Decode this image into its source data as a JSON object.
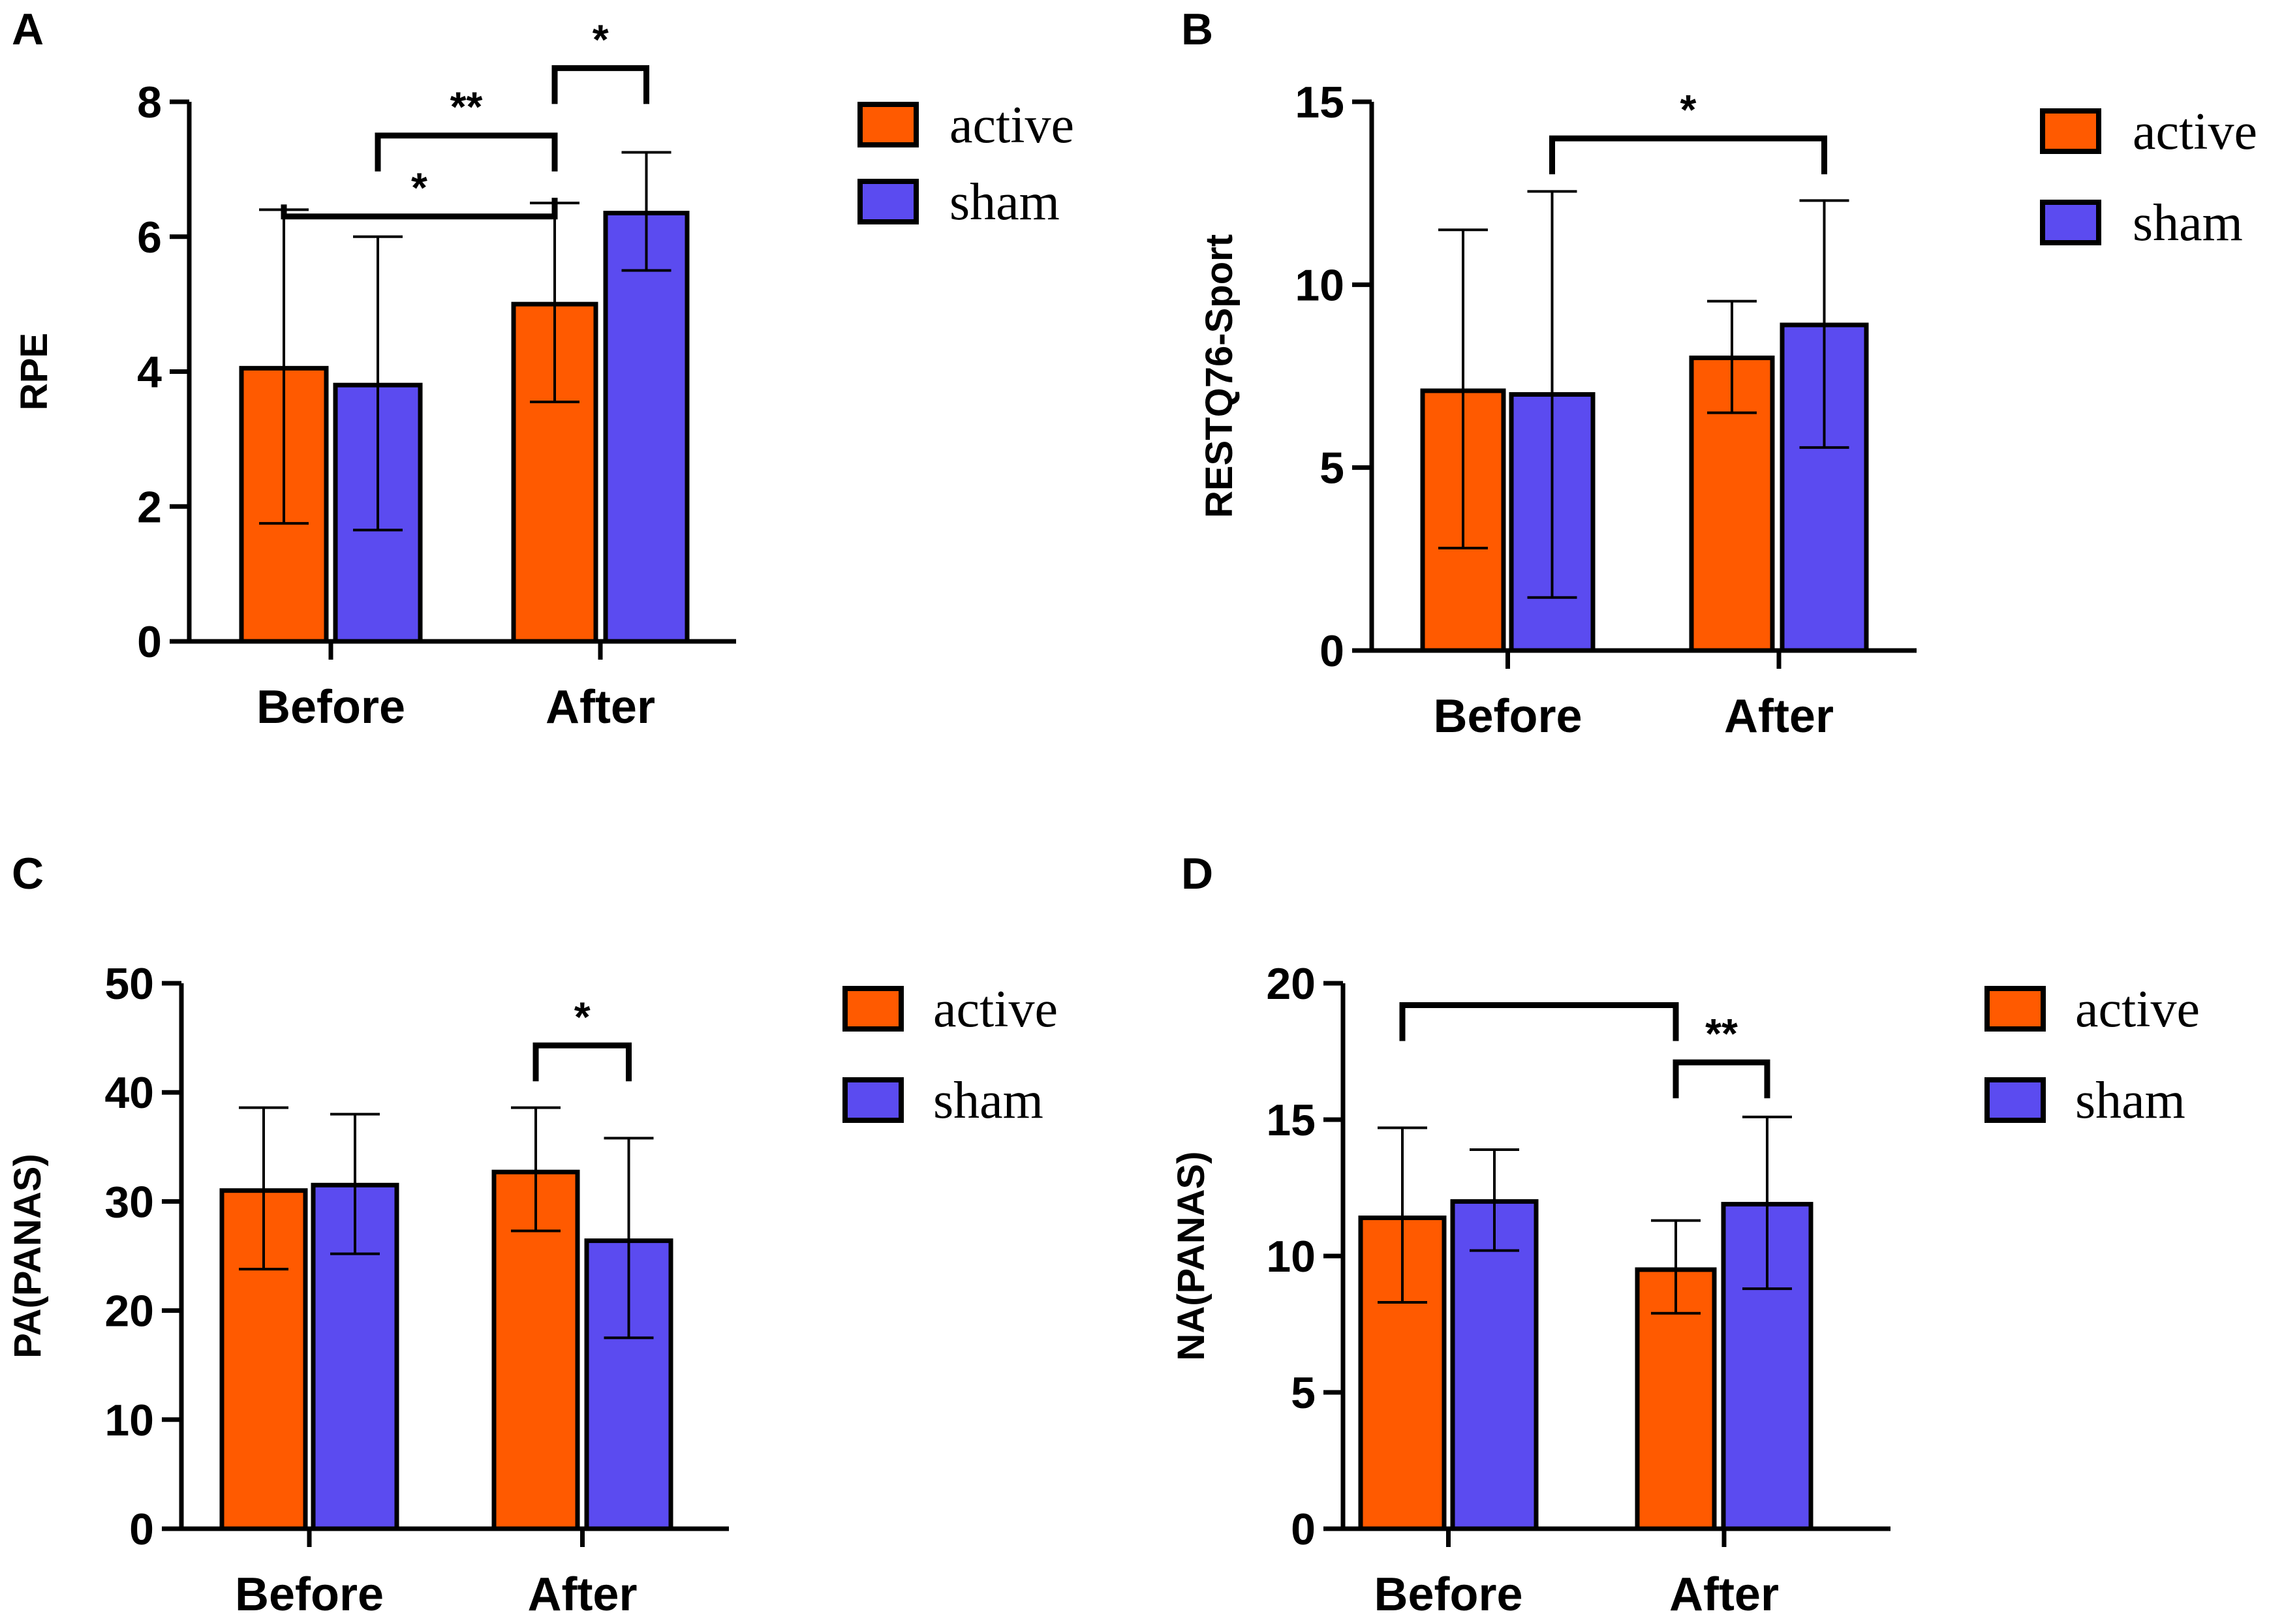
{
  "colors": {
    "active": "#FF5A00",
    "sham": "#5B4BF0",
    "outline": "#000000"
  },
  "legend": {
    "active_label": "active",
    "sham_label": "sham"
  },
  "chart_data": [
    {
      "id": "A",
      "panel_label": "A",
      "type": "bar",
      "title": "",
      "xlabel": "",
      "ylabel": "RPE",
      "categories": [
        "Before",
        "After"
      ],
      "ylim": [
        0,
        8
      ],
      "yticks": [
        0,
        2,
        4,
        6,
        8
      ],
      "ytick_labels": [
        "0",
        "2",
        "4",
        "6",
        "8"
      ],
      "series": [
        {
          "name": "active",
          "values": [
            4.05,
            5.0
          ],
          "err_upper": [
            6.4,
            6.5
          ],
          "err_lower": [
            1.75,
            3.55
          ]
        },
        {
          "name": "sham",
          "values": [
            3.8,
            6.35
          ],
          "err_upper": [
            6.0,
            7.25
          ],
          "err_lower": [
            1.65,
            5.5
          ]
        }
      ],
      "significance": [
        {
          "label": "*",
          "from": [
            0,
            0
          ],
          "to": [
            1,
            0
          ],
          "level": 6.3
        },
        {
          "label": "**",
          "from": [
            0,
            1
          ],
          "to": [
            1,
            0
          ],
          "level": 7.5
        },
        {
          "label": "*",
          "from": [
            1,
            0
          ],
          "to": [
            1,
            1
          ],
          "level": 8.5
        }
      ]
    },
    {
      "id": "B",
      "panel_label": "B",
      "type": "bar",
      "title": "",
      "xlabel": "",
      "ylabel": "RESTQ76-Sport",
      "categories": [
        "Before",
        "After"
      ],
      "ylim": [
        0,
        15
      ],
      "yticks": [
        0,
        5,
        10,
        15
      ],
      "ytick_labels": [
        "0",
        "5",
        "10",
        "15"
      ],
      "series": [
        {
          "name": "active",
          "values": [
            7.1,
            8.0
          ],
          "err_upper": [
            11.5,
            9.55
          ],
          "err_lower": [
            2.8,
            6.5
          ]
        },
        {
          "name": "sham",
          "values": [
            7.0,
            8.9
          ],
          "err_upper": [
            12.55,
            12.3
          ],
          "err_lower": [
            1.45,
            5.55
          ]
        }
      ],
      "significance": [
        {
          "label": "*",
          "from": [
            0,
            1
          ],
          "to": [
            1,
            1
          ],
          "level": 14.0
        }
      ]
    },
    {
      "id": "C",
      "panel_label": "C",
      "type": "bar",
      "title": "",
      "xlabel": "",
      "ylabel": "PA(PANAS)",
      "categories": [
        "Before",
        "After"
      ],
      "ylim": [
        0,
        50
      ],
      "yticks": [
        0,
        10,
        20,
        30,
        40,
        50
      ],
      "ytick_labels": [
        "0",
        "10",
        "20",
        "30",
        "40",
        "50"
      ],
      "series": [
        {
          "name": "active",
          "values": [
            31.0,
            32.7
          ],
          "err_upper": [
            38.6,
            38.6
          ],
          "err_lower": [
            23.8,
            27.3
          ]
        },
        {
          "name": "sham",
          "values": [
            31.5,
            26.4
          ],
          "err_upper": [
            38.0,
            35.8
          ],
          "err_lower": [
            25.2,
            17.5
          ]
        }
      ],
      "significance": [
        {
          "label": "*",
          "from": [
            1,
            0
          ],
          "to": [
            1,
            1
          ],
          "level": 44.3
        }
      ]
    },
    {
      "id": "D",
      "panel_label": "D",
      "type": "bar",
      "title": "",
      "xlabel": "",
      "ylabel": "NA(PANAS)",
      "categories": [
        "Before",
        "After"
      ],
      "ylim": [
        0,
        20
      ],
      "yticks": [
        0,
        5,
        10,
        15,
        20
      ],
      "ytick_labels": [
        "0",
        "5",
        "10",
        "15",
        "20"
      ],
      "series": [
        {
          "name": "active",
          "values": [
            11.4,
            9.5
          ],
          "err_upper": [
            14.7,
            11.3
          ],
          "err_lower": [
            8.3,
            7.9
          ]
        },
        {
          "name": "sham",
          "values": [
            12.0,
            11.9
          ],
          "err_upper": [
            13.9,
            15.1
          ],
          "err_lower": [
            10.2,
            8.8
          ]
        }
      ],
      "significance": [
        {
          "label": "",
          "from": [
            0,
            0
          ],
          "to": [
            1,
            0
          ],
          "level": 19.2
        },
        {
          "label": "**",
          "from": [
            1,
            0
          ],
          "to": [
            1,
            1
          ],
          "level": 17.1
        }
      ]
    }
  ]
}
